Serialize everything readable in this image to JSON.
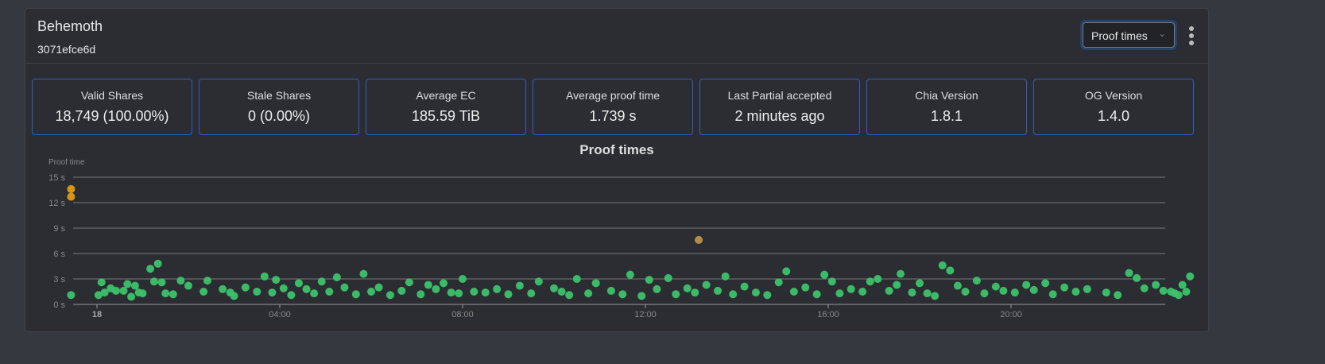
{
  "header": {
    "title": "Behemoth",
    "subtitle": "3071efce6d",
    "select_value": "Proof times"
  },
  "stats": [
    {
      "label": "Valid Shares",
      "value": "18,749 (100.00%)"
    },
    {
      "label": "Stale Shares",
      "value": "0 (0.00%)"
    },
    {
      "label": "Average EC",
      "value": "185.59 TiB"
    },
    {
      "label": "Average proof time",
      "value": "1.739 s"
    },
    {
      "label": "Last Partial accepted",
      "value": "2 minutes ago"
    },
    {
      "label": "Chia Version",
      "value": "1.8.1"
    },
    {
      "label": "OG Version",
      "value": "1.4.0"
    }
  ],
  "chart_data": {
    "type": "scatter",
    "title": "Proof times",
    "ylabel": "Proof time",
    "ylim": [
      0,
      15
    ],
    "yticks": [
      "0 s",
      "3 s",
      "6 s",
      "9 s",
      "12 s",
      "15 s"
    ],
    "xticks": [
      "18",
      "04:00",
      "08:00",
      "12:00",
      "16:00",
      "20:00"
    ],
    "xlim": [
      "23:25",
      "24:00"
    ],
    "colors": {
      "normal": "#3cc36c",
      "slow": "#e09a12",
      "medium": "#b8924a"
    },
    "points": [
      [
        "23:26",
        13.6,
        "slow"
      ],
      [
        "23:26",
        12.7,
        "slow"
      ],
      [
        "13:10",
        7.6,
        "medium"
      ],
      [
        "23:26",
        1.1
      ],
      [
        "23:30",
        1.5
      ],
      [
        "23:35",
        1.3
      ],
      [
        "23:45",
        2.3
      ],
      [
        "23:50",
        1.5
      ],
      [
        "23:55",
        3.3
      ],
      [
        "00:02",
        1.1
      ],
      [
        "00:06",
        2.6
      ],
      [
        "00:10",
        1.4
      ],
      [
        "00:18",
        1.9
      ],
      [
        "00:25",
        1.6
      ],
      [
        "00:35",
        1.6
      ],
      [
        "00:40",
        2.4
      ],
      [
        "00:45",
        0.9
      ],
      [
        "00:50",
        2.2
      ],
      [
        "00:55",
        1.4
      ],
      [
        "01:00",
        1.3
      ],
      [
        "01:10",
        4.2
      ],
      [
        "01:15",
        2.7
      ],
      [
        "01:20",
        4.8
      ],
      [
        "01:25",
        2.6
      ],
      [
        "01:30",
        1.3
      ],
      [
        "01:40",
        1.2
      ],
      [
        "01:50",
        2.8
      ],
      [
        "02:00",
        2.2
      ],
      [
        "02:20",
        1.5
      ],
      [
        "02:25",
        2.8
      ],
      [
        "02:45",
        1.8
      ],
      [
        "02:55",
        1.4
      ],
      [
        "03:00",
        1.0
      ],
      [
        "03:15",
        2.0
      ],
      [
        "03:30",
        1.5
      ],
      [
        "03:40",
        3.3
      ],
      [
        "03:50",
        1.4
      ],
      [
        "03:55",
        2.9
      ],
      [
        "04:05",
        1.9
      ],
      [
        "04:15",
        1.1
      ],
      [
        "04:25",
        2.5
      ],
      [
        "04:35",
        1.8
      ],
      [
        "04:45",
        1.3
      ],
      [
        "04:55",
        2.7
      ],
      [
        "05:05",
        1.5
      ],
      [
        "05:15",
        3.2
      ],
      [
        "05:25",
        2.0
      ],
      [
        "05:40",
        1.2
      ],
      [
        "05:50",
        3.6
      ],
      [
        "06:00",
        1.5
      ],
      [
        "06:10",
        2.0
      ],
      [
        "06:25",
        1.1
      ],
      [
        "06:40",
        1.6
      ],
      [
        "06:50",
        2.6
      ],
      [
        "07:05",
        1.2
      ],
      [
        "07:15",
        2.3
      ],
      [
        "07:25",
        1.8
      ],
      [
        "07:35",
        2.5
      ],
      [
        "07:45",
        1.4
      ],
      [
        "07:55",
        1.3
      ],
      [
        "08:00",
        3.0
      ],
      [
        "08:15",
        1.5
      ],
      [
        "08:30",
        1.4
      ],
      [
        "08:45",
        1.8
      ],
      [
        "09:00",
        1.2
      ],
      [
        "09:15",
        2.2
      ],
      [
        "09:30",
        1.3
      ],
      [
        "09:40",
        2.7
      ],
      [
        "10:00",
        1.9
      ],
      [
        "10:10",
        1.5
      ],
      [
        "10:20",
        1.1
      ],
      [
        "10:30",
        3.0
      ],
      [
        "10:45",
        1.3
      ],
      [
        "10:55",
        2.5
      ],
      [
        "11:15",
        1.6
      ],
      [
        "11:30",
        1.2
      ],
      [
        "11:40",
        3.5
      ],
      [
        "11:55",
        1.0
      ],
      [
        "12:05",
        2.9
      ],
      [
        "12:15",
        1.8
      ],
      [
        "12:30",
        3.1
      ],
      [
        "12:40",
        1.2
      ],
      [
        "12:55",
        1.9
      ],
      [
        "13:05",
        1.4
      ],
      [
        "13:20",
        2.3
      ],
      [
        "13:35",
        1.6
      ],
      [
        "13:45",
        3.3
      ],
      [
        "13:55",
        1.2
      ],
      [
        "14:10",
        2.1
      ],
      [
        "14:25",
        1.4
      ],
      [
        "14:40",
        1.1
      ],
      [
        "14:55",
        2.6
      ],
      [
        "15:05",
        3.9
      ],
      [
        "15:15",
        1.5
      ],
      [
        "15:30",
        2.0
      ],
      [
        "15:45",
        1.2
      ],
      [
        "15:55",
        3.5
      ],
      [
        "16:05",
        2.7
      ],
      [
        "16:15",
        1.3
      ],
      [
        "16:30",
        1.8
      ],
      [
        "16:45",
        1.5
      ],
      [
        "16:55",
        2.7
      ],
      [
        "17:05",
        3.0
      ],
      [
        "17:20",
        1.6
      ],
      [
        "17:30",
        2.3
      ],
      [
        "17:35",
        3.6
      ],
      [
        "17:50",
        1.4
      ],
      [
        "18:00",
        2.5
      ],
      [
        "18:10",
        1.3
      ],
      [
        "18:20",
        1.0
      ],
      [
        "18:30",
        4.6
      ],
      [
        "18:40",
        4.0
      ],
      [
        "18:50",
        2.2
      ],
      [
        "19:00",
        1.5
      ],
      [
        "19:15",
        2.8
      ],
      [
        "19:25",
        1.3
      ],
      [
        "19:40",
        2.1
      ],
      [
        "19:50",
        1.6
      ],
      [
        "20:05",
        1.4
      ],
      [
        "20:20",
        2.3
      ],
      [
        "20:30",
        1.7
      ],
      [
        "20:45",
        2.5
      ],
      [
        "20:55",
        1.2
      ],
      [
        "21:10",
        2.0
      ],
      [
        "21:25",
        1.5
      ],
      [
        "21:40",
        1.8
      ],
      [
        "22:05",
        1.4
      ],
      [
        "22:20",
        1.1
      ],
      [
        "22:35",
        3.7
      ],
      [
        "22:45",
        3.1
      ],
      [
        "22:55",
        1.9
      ],
      [
        "23:10",
        2.3
      ],
      [
        "23:20",
        1.6
      ],
      [
        "23:40",
        1.1
      ]
    ]
  }
}
